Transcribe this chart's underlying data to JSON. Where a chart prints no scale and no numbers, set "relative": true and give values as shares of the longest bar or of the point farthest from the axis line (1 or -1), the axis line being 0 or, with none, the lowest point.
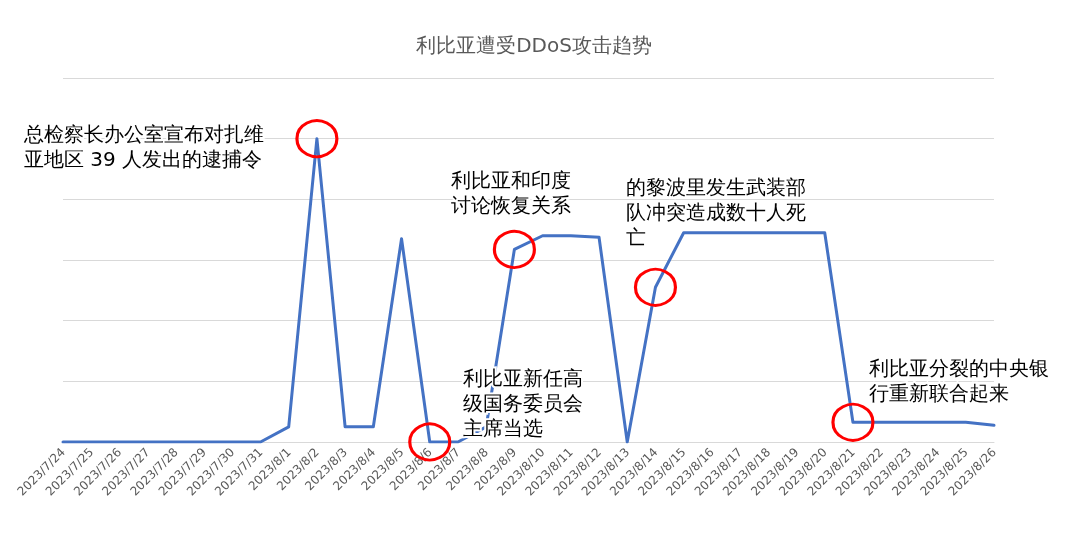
{
  "chart_data": {
    "type": "line",
    "title": "利比亚遭受DDoS攻击趋势",
    "relative": true,
    "grid": "y",
    "marker": "none",
    "line_style": "solid",
    "categories": [
      "2023/7/24",
      "2023/7/25",
      "2023/7/26",
      "2023/7/27",
      "2023/7/28",
      "2023/7/29",
      "2023/7/30",
      "2023/7/31",
      "2023/8/1",
      "2023/8/2",
      "2023/8/3",
      "2023/8/4",
      "2023/8/5",
      "2023/8/6",
      "2023/8/7",
      "2023/8/8",
      "2023/8/9",
      "2023/8/10",
      "2023/8/11",
      "2023/8/12",
      "2023/8/13",
      "2023/8/14",
      "2023/8/15",
      "2023/8/16",
      "2023/8/17",
      "2023/8/18",
      "2023/8/19",
      "2023/8/20",
      "2023/8/21",
      "2023/8/22",
      "2023/8/23",
      "2023/8/24",
      "2023/8/25",
      "2023/8/26"
    ],
    "series": [
      {
        "color": "#4472c4",
        "values": [
          0,
          0,
          0,
          0,
          0,
          0,
          0,
          0,
          0.05,
          1,
          0.05,
          0.05,
          0.67,
          0,
          0,
          0.05,
          0.635,
          0.68,
          0.68,
          0.675,
          0,
          0.51,
          0.69,
          0.69,
          0.69,
          0.69,
          0.69,
          0.69,
          0.065,
          0.065,
          0.065,
          0.065,
          0.065,
          0.055
        ]
      }
    ],
    "annotations": [
      {
        "text": "总检察长办公室宣布对扎维亚地区 39 人发出的逮捕令",
        "x": "2023/8/2",
        "y": 1
      },
      {
        "text": "利比亚新任高级国务委员会主席当选",
        "x": "2023/8/6",
        "y": 0
      },
      {
        "text": "利比亚和印度讨论恢复关系",
        "x": "2023/8/9",
        "y": 0.635
      },
      {
        "text": "的黎波里发生武装部队冲突造成数十人死亡",
        "x": "2023/8/14",
        "y": 0.51
      },
      {
        "text": "利比亚分裂的中央银行重新联合起来",
        "x": "2023/8/21",
        "y": 0.065
      }
    ]
  }
}
